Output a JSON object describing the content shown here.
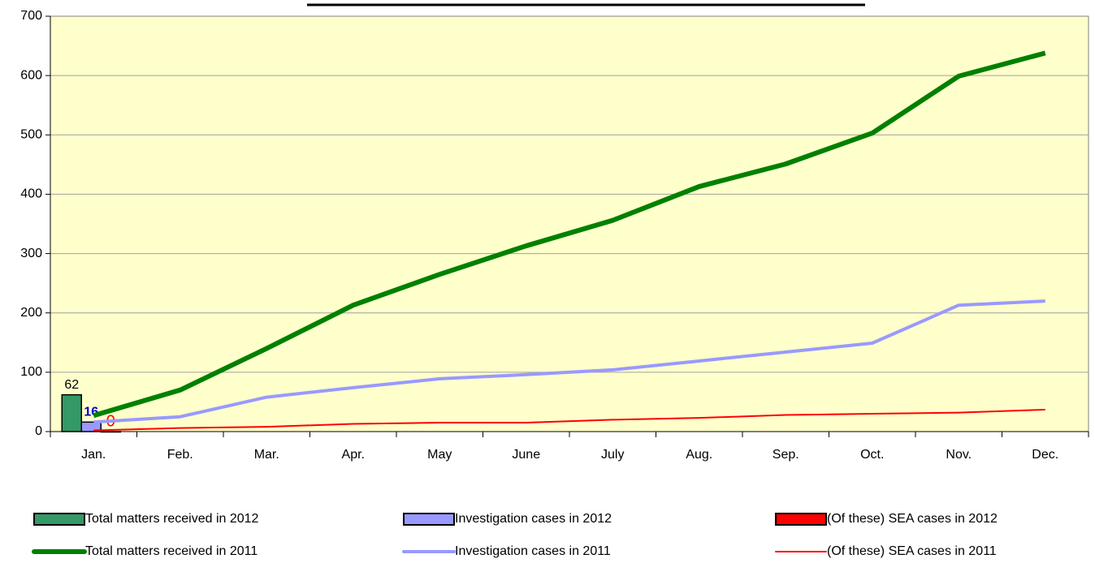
{
  "chart_data": {
    "type": "bar_line",
    "categories": [
      "Jan.",
      "Feb.",
      "Mar.",
      "Apr.",
      "May",
      "June",
      "July",
      "Aug.",
      "Sep.",
      "Oct.",
      "Nov.",
      "Dec."
    ],
    "ylim": [
      0,
      700
    ],
    "yticks": [
      0,
      100,
      200,
      300,
      400,
      500,
      600,
      700
    ],
    "grid": true,
    "series": [
      {
        "name": "Total matters received in 2012",
        "kind": "bar",
        "color": "#339966",
        "label_color": "#000000",
        "values": [
          62,
          null,
          null,
          null,
          null,
          null,
          null,
          null,
          null,
          null,
          null,
          null
        ]
      },
      {
        "name": "Investigation cases in 2012",
        "kind": "bar",
        "color": "#9999ff",
        "label_color": "#0000cc",
        "values": [
          16,
          null,
          null,
          null,
          null,
          null,
          null,
          null,
          null,
          null,
          null,
          null
        ]
      },
      {
        "name": "(Of these) SEA cases in 2012",
        "kind": "bar",
        "color": "#ff0000",
        "label_color": "#ff0000",
        "values": [
          0,
          null,
          null,
          null,
          null,
          null,
          null,
          null,
          null,
          null,
          null,
          null
        ]
      },
      {
        "name": "Total matters received in 2011",
        "kind": "line",
        "color": "#008000",
        "width": 6,
        "values": [
          27,
          70,
          140,
          213,
          265,
          313,
          356,
          413,
          451,
          503,
          599,
          638
        ]
      },
      {
        "name": "Investigation cases in 2011",
        "kind": "line",
        "color": "#9999ff",
        "width": 4,
        "values": [
          16,
          25,
          58,
          74,
          89,
          96,
          104,
          119,
          134,
          149,
          213,
          220
        ]
      },
      {
        "name": "(Of these) SEA cases in 2011",
        "kind": "line",
        "color": "#ff0000",
        "width": 2,
        "values": [
          2,
          6,
          8,
          13,
          15,
          15,
          20,
          23,
          28,
          30,
          32,
          37
        ]
      }
    ]
  }
}
